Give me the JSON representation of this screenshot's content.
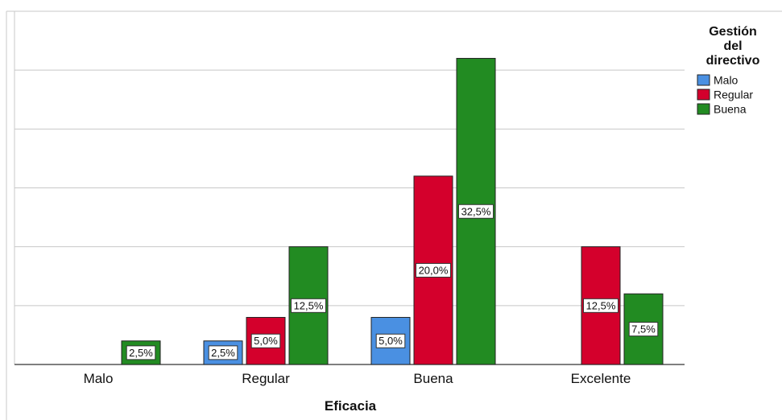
{
  "chart_data": {
    "type": "bar",
    "title": "",
    "xlabel": "Eficacia",
    "ylabel": "",
    "categories": [
      "Malo",
      "Regular",
      "Buena",
      "Excelente"
    ],
    "ylim": [
      0,
      37.5
    ],
    "grid": true,
    "legend": {
      "title_lines": [
        "Gestión",
        "del",
        "directivo"
      ],
      "placement": "top-right"
    },
    "series": [
      {
        "name": "Malo",
        "color": "#4a90e2",
        "values": [
          null,
          2.5,
          5.0,
          null
        ],
        "labels": [
          "",
          "2,5%",
          "5,0%",
          ""
        ]
      },
      {
        "name": "Regular",
        "color": "#d4002c",
        "values": [
          null,
          5.0,
          20.0,
          12.5
        ],
        "labels": [
          "",
          "5,0%",
          "20,0%",
          "12,5%"
        ]
      },
      {
        "name": "Buena",
        "color": "#228b22",
        "values": [
          2.5,
          12.5,
          32.5,
          7.5
        ],
        "labels": [
          "2,5%",
          "12,5%",
          "32,5%",
          "7,5%"
        ]
      }
    ]
  }
}
